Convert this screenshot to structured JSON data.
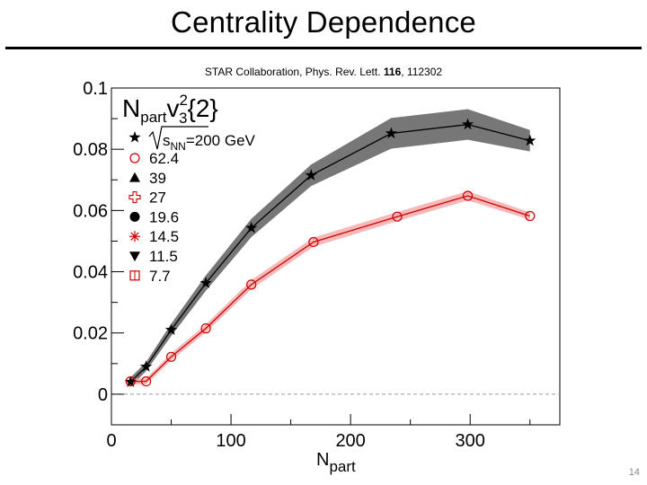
{
  "slide": {
    "title": "Centrality Dependence",
    "citation_prefix": "STAR Collaboration, Phys. Rev. Lett. ",
    "citation_volume": "116",
    "citation_suffix": ", 112302",
    "slide_number": "14"
  },
  "chart_data": {
    "type": "line",
    "title": "",
    "panel_label": {
      "base": "N",
      "base_sub": "part",
      "v": "v",
      "v_sup": "2",
      "v_sub": "3",
      "brace": "{2}"
    },
    "xlabel": "N",
    "xlabel_sub": "part",
    "ylabel": "",
    "xlim": [
      0,
      375
    ],
    "ylim": [
      -0.01,
      0.1
    ],
    "x_ticks": [
      0,
      100,
      200,
      300
    ],
    "x_tick_labels": [
      "0",
      "100",
      "200",
      "300"
    ],
    "y_ticks": [
      0,
      0.02,
      0.04,
      0.06,
      0.08,
      0.1
    ],
    "y_tick_labels": [
      "0",
      "0.02",
      "0.04",
      "0.06",
      "0.08",
      "0.1"
    ],
    "zero_line": true,
    "grid": false,
    "legend_header": {
      "label": "s",
      "label_sub": "NN",
      "unit": "=200 GeV"
    },
    "legend_position": "top-left",
    "legend": [
      {
        "label": "62.4",
        "marker": "open-circle",
        "color": "#cc0000"
      },
      {
        "label": "39",
        "marker": "triangle-up",
        "color": "#000000"
      },
      {
        "label": "27",
        "marker": "open-cross",
        "color": "#cc0000"
      },
      {
        "label": "19.6",
        "marker": "filled-circle",
        "color": "#000000"
      },
      {
        "label": "14.5",
        "marker": "asterisk",
        "color": "#cc0000"
      },
      {
        "label": "11.5",
        "marker": "triangle-down",
        "color": "#000000"
      },
      {
        "label": "7.7",
        "marker": "open-square",
        "color": "#cc0000"
      }
    ],
    "series": [
      {
        "name": "200 GeV",
        "marker": "star",
        "color": "#000000",
        "band_color": "#777777",
        "x": [
          16,
          29,
          50,
          79,
          117,
          167,
          234,
          298,
          350
        ],
        "values": [
          0.004,
          0.009,
          0.021,
          0.0363,
          0.0543,
          0.0715,
          0.0852,
          0.0881,
          0.0828
        ],
        "band": [
          0.0015,
          0.0015,
          0.002,
          0.0025,
          0.003,
          0.0035,
          0.005,
          0.005,
          0.0035
        ]
      },
      {
        "name": "62.4",
        "marker": "open-circle",
        "color": "#cc0000",
        "band_color": "#f3a0a0",
        "x": [
          16,
          29,
          50,
          79,
          117,
          169,
          239,
          298,
          350
        ],
        "values": [
          0.0042,
          0.0042,
          0.0122,
          0.0215,
          0.0358,
          0.0497,
          0.058,
          0.0648,
          0.0582
        ],
        "band": [
          0.001,
          0.001,
          0.0012,
          0.0013,
          0.0015,
          0.0015,
          0.0015,
          0.0015,
          0.0012
        ]
      }
    ]
  }
}
